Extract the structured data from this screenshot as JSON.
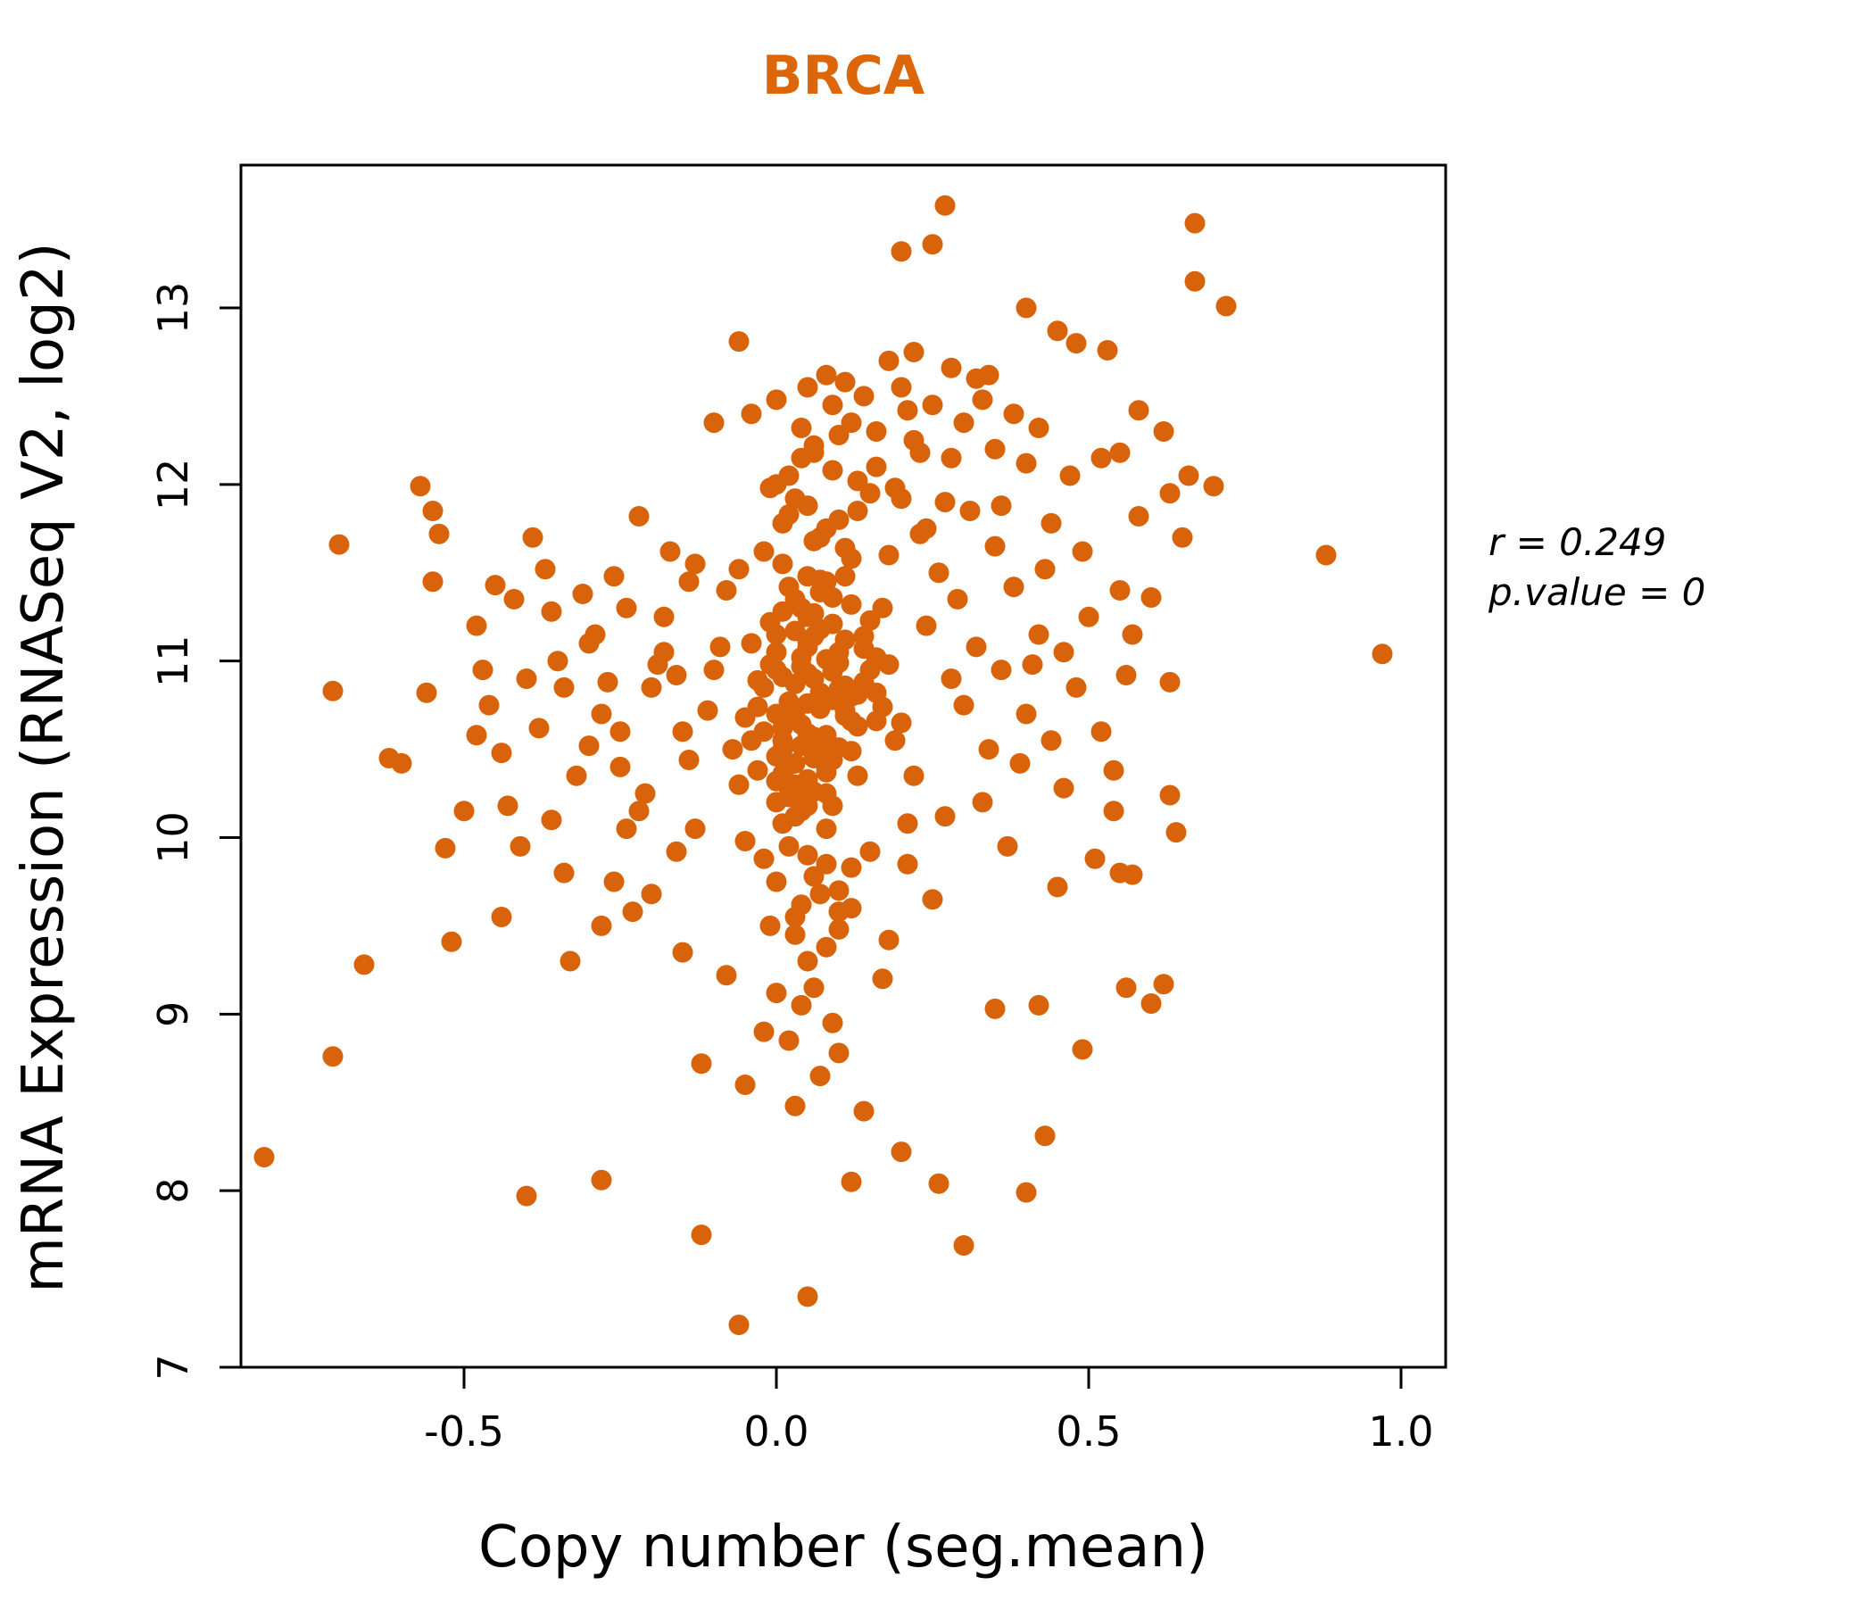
{
  "title": "BRCA",
  "chart_data": {
    "type": "scatter",
    "title": "BRCA",
    "xlabel": "Copy number (seg.mean)",
    "ylabel": "mRNA Expression (RNASeq V2, log2)",
    "xlim": [
      -0.86,
      1.07
    ],
    "ylim": [
      7,
      13.8
    ],
    "x_ticks": [
      -0.5,
      0.0,
      0.5,
      1.0
    ],
    "x_tick_labels": [
      "-0.5",
      "0.0",
      "0.5",
      "1.0"
    ],
    "y_ticks": [
      7,
      8,
      9,
      10,
      11,
      12,
      13
    ],
    "y_tick_labels": [
      "7",
      "8",
      "9",
      "10",
      "11",
      "12",
      "13"
    ],
    "grid": false,
    "legend": "none",
    "point_color": "#D9630B",
    "title_color": "#DD6608",
    "annotation": {
      "line1": "r = 0.249",
      "line2": "p.value = 0"
    },
    "points": [
      [
        -0.02,
        10.85
      ],
      [
        0.01,
        10.62
      ],
      [
        0.04,
        11.02
      ],
      [
        0.07,
        10.48
      ],
      [
        0.0,
        10.95
      ],
      [
        0.03,
        10.71
      ],
      [
        0.05,
        10.33
      ],
      [
        -0.04,
        10.55
      ],
      [
        0.09,
        10.78
      ],
      [
        0.11,
        11.12
      ],
      [
        0.02,
        10.41
      ],
      [
        -0.01,
        11.22
      ],
      [
        0.06,
        10.9
      ],
      [
        0.08,
        10.58
      ],
      [
        0.0,
        10.2
      ],
      [
        0.03,
        11.35
      ],
      [
        0.12,
        10.66
      ],
      [
        0.05,
        11.08
      ],
      [
        -0.03,
        10.74
      ],
      [
        0.1,
        10.99
      ],
      [
        0.01,
        10.36
      ],
      [
        0.07,
        11.18
      ],
      [
        0.04,
        10.52
      ],
      [
        0.13,
        10.81
      ],
      [
        0.02,
        11.42
      ],
      [
        -0.05,
        10.68
      ],
      [
        0.08,
        10.25
      ],
      [
        0.05,
        10.93
      ],
      [
        0.0,
        11.15
      ],
      [
        0.09,
        10.44
      ],
      [
        0.11,
        10.72
      ],
      [
        0.03,
        10.3
      ],
      [
        0.06,
        11.27
      ],
      [
        -0.02,
        10.6
      ],
      [
        0.14,
        10.88
      ],
      [
        0.01,
        10.5
      ],
      [
        0.04,
        10.15
      ],
      [
        0.07,
        10.82
      ],
      [
        0.1,
        11.05
      ],
      [
        0.0,
        10.7
      ],
      [
        0.05,
        11.48
      ],
      [
        0.02,
        10.23
      ],
      [
        0.15,
        10.95
      ],
      [
        -0.04,
        11.1
      ],
      [
        0.08,
        10.4
      ],
      [
        0.03,
        10.87
      ],
      [
        0.12,
        11.32
      ],
      [
        0.06,
        10.57
      ],
      [
        0.01,
        10.08
      ],
      [
        0.09,
        11.21
      ],
      [
        0.05,
        10.76
      ],
      [
        0.13,
        10.35
      ],
      [
        -0.01,
        10.98
      ],
      [
        0.07,
        11.39
      ],
      [
        0.04,
        10.64
      ],
      [
        0.16,
        11.02
      ],
      [
        0.02,
        10.28
      ],
      [
        0.1,
        10.84
      ],
      [
        0.06,
        11.14
      ],
      [
        0.0,
        10.46
      ],
      [
        0.08,
        11.45
      ],
      [
        0.03,
        10.12
      ],
      [
        0.11,
        10.69
      ],
      [
        0.05,
        11.25
      ],
      [
        -0.03,
        10.38
      ],
      [
        0.14,
        11.07
      ],
      [
        0.07,
        10.54
      ],
      [
        0.01,
        10.91
      ],
      [
        0.09,
        10.18
      ],
      [
        0.17,
        10.74
      ],
      [
        0.04,
        11.3
      ],
      [
        0.12,
        10.49
      ],
      [
        0.02,
        9.95
      ],
      [
        0.06,
        9.78
      ],
      [
        -0.02,
        9.88
      ],
      [
        0.1,
        9.7
      ],
      [
        0.04,
        9.62
      ],
      [
        0.08,
        10.05
      ],
      [
        0.0,
        9.75
      ],
      [
        0.05,
        9.9
      ],
      [
        0.12,
        9.83
      ],
      [
        -0.05,
        9.98
      ],
      [
        0.03,
        9.55
      ],
      [
        0.07,
        9.68
      ],
      [
        0.01,
        11.55
      ],
      [
        0.06,
        11.68
      ],
      [
        0.1,
        11.8
      ],
      [
        0.03,
        11.92
      ],
      [
        -0.02,
        11.62
      ],
      [
        0.08,
        11.75
      ],
      [
        0.05,
        11.88
      ],
      [
        0.12,
        11.58
      ],
      [
        0.0,
        12.0
      ],
      [
        0.07,
        11.7
      ],
      [
        0.02,
        11.83
      ],
      [
        0.15,
        11.95
      ],
      [
        -0.06,
        11.52
      ],
      [
        0.09,
        12.08
      ],
      [
        0.04,
        12.15
      ],
      [
        0.11,
        11.64
      ],
      [
        0.06,
        12.22
      ],
      [
        0.01,
        11.78
      ],
      [
        0.13,
        12.02
      ],
      [
        0.03,
        9.45
      ],
      [
        0.08,
        9.38
      ],
      [
        -0.01,
        9.5
      ],
      [
        0.05,
        9.3
      ],
      [
        0.1,
        9.58
      ],
      [
        -0.15,
        10.6
      ],
      [
        -0.2,
        10.85
      ],
      [
        -0.25,
        10.4
      ],
      [
        -0.18,
        11.05
      ],
      [
        -0.22,
        10.15
      ],
      [
        -0.28,
        10.7
      ],
      [
        -0.16,
        9.92
      ],
      [
        -0.24,
        11.3
      ],
      [
        -0.19,
        10.98
      ],
      [
        -0.3,
        10.52
      ],
      [
        -0.14,
        11.45
      ],
      [
        -0.26,
        9.75
      ],
      [
        -0.21,
        10.25
      ],
      [
        -0.17,
        11.62
      ],
      [
        -0.29,
        11.15
      ],
      [
        -0.13,
        10.05
      ],
      [
        -0.23,
        9.58
      ],
      [
        -0.27,
        10.88
      ],
      [
        0.2,
        10.65
      ],
      [
        0.24,
        11.2
      ],
      [
        0.28,
        10.9
      ],
      [
        0.22,
        10.35
      ],
      [
        0.26,
        11.5
      ],
      [
        0.3,
        10.75
      ],
      [
        0.21,
        9.85
      ],
      [
        0.27,
        10.12
      ],
      [
        0.23,
        11.72
      ],
      [
        0.32,
        11.08
      ],
      [
        0.25,
        9.65
      ],
      [
        0.29,
        11.35
      ],
      [
        0.34,
        10.5
      ],
      [
        0.31,
        11.85
      ],
      [
        0.36,
        10.95
      ],
      [
        0.33,
        10.2
      ],
      [
        0.38,
        11.42
      ],
      [
        0.35,
        11.65
      ],
      [
        0.4,
        10.7
      ],
      [
        0.37,
        9.95
      ],
      [
        0.42,
        11.15
      ],
      [
        0.39,
        10.42
      ],
      [
        0.44,
        11.78
      ],
      [
        0.41,
        10.98
      ],
      [
        -0.32,
        10.35
      ],
      [
        -0.35,
        11.0
      ],
      [
        -0.38,
        10.62
      ],
      [
        -0.34,
        9.8
      ],
      [
        -0.31,
        11.38
      ],
      [
        -0.36,
        10.1
      ],
      [
        0.18,
        9.42
      ],
      [
        0.16,
        12.3
      ],
      [
        0.19,
        11.98
      ],
      [
        0.23,
        12.18
      ],
      [
        0.17,
        9.2
      ],
      [
        0.21,
        12.42
      ],
      [
        0.46,
        10.28
      ],
      [
        0.43,
        11.52
      ],
      [
        0.48,
        10.85
      ],
      [
        0.45,
        9.72
      ],
      [
        0.5,
        11.25
      ],
      [
        0.47,
        12.05
      ],
      [
        -0.4,
        10.9
      ],
      [
        -0.42,
        11.35
      ],
      [
        -0.44,
        10.48
      ],
      [
        -0.41,
        9.95
      ],
      [
        -0.39,
        11.7
      ],
      [
        -0.43,
        10.18
      ],
      [
        0.52,
        10.6
      ],
      [
        0.55,
        11.4
      ],
      [
        0.54,
        10.15
      ],
      [
        0.58,
        11.82
      ],
      [
        0.51,
        9.88
      ],
      [
        0.56,
        10.92
      ],
      [
        0.0,
        9.12
      ],
      [
        0.04,
        9.05
      ],
      [
        -0.08,
        9.22
      ],
      [
        0.09,
        8.95
      ],
      [
        0.02,
        8.85
      ],
      [
        0.06,
        9.15
      ],
      [
        -0.1,
        12.35
      ],
      [
        0.0,
        12.48
      ],
      [
        0.05,
        12.55
      ],
      [
        0.1,
        12.28
      ],
      [
        -0.04,
        12.4
      ],
      [
        0.08,
        12.62
      ],
      [
        0.14,
        12.5
      ],
      [
        0.18,
        12.7
      ],
      [
        0.12,
        12.35
      ],
      [
        0.2,
        12.55
      ],
      [
        0.16,
        12.1
      ],
      [
        0.22,
        12.25
      ],
      [
        0.25,
        12.45
      ],
      [
        0.28,
        12.15
      ],
      [
        0.3,
        12.35
      ],
      [
        0.27,
        11.9
      ],
      [
        0.33,
        12.48
      ],
      [
        0.24,
        11.75
      ],
      [
        0.35,
        12.2
      ],
      [
        0.38,
        12.4
      ],
      [
        0.32,
        12.6
      ],
      [
        0.4,
        12.12
      ],
      [
        0.36,
        11.88
      ],
      [
        0.42,
        12.32
      ],
      [
        -0.12,
        8.72
      ],
      [
        -0.05,
        8.6
      ],
      [
        0.03,
        8.48
      ],
      [
        0.1,
        8.78
      ],
      [
        -0.02,
        8.9
      ],
      [
        0.07,
        8.65
      ],
      [
        0.02,
        10.77
      ],
      [
        0.05,
        10.59
      ],
      [
        0.08,
        11.01
      ],
      [
        0.0,
        10.32
      ],
      [
        0.11,
        10.86
      ],
      [
        0.03,
        11.17
      ],
      [
        0.06,
        10.45
      ],
      [
        0.09,
        10.94
      ],
      [
        0.01,
        11.28
      ],
      [
        0.13,
        10.63
      ],
      [
        0.04,
        10.21
      ],
      [
        0.07,
        11.46
      ],
      [
        -0.03,
        10.89
      ],
      [
        0.1,
        10.51
      ],
      [
        0.05,
        11.11
      ],
      [
        0.02,
        10.68
      ],
      [
        0.15,
        11.23
      ],
      [
        0.08,
        10.37
      ],
      [
        0.12,
        10.8
      ],
      [
        0.0,
        11.05
      ],
      [
        0.06,
        10.26
      ],
      [
        0.04,
        10.97
      ],
      [
        0.09,
        11.36
      ],
      [
        0.01,
        10.55
      ],
      [
        0.14,
        11.14
      ],
      [
        0.03,
        10.42
      ],
      [
        0.07,
        10.73
      ],
      [
        0.11,
        11.48
      ],
      [
        0.05,
        10.18
      ],
      [
        0.16,
        10.66
      ],
      [
        -0.07,
        10.5
      ],
      [
        -0.09,
        11.08
      ],
      [
        -0.11,
        10.72
      ],
      [
        -0.06,
        10.3
      ],
      [
        -0.08,
        11.4
      ],
      [
        -0.1,
        10.95
      ],
      [
        -0.46,
        10.75
      ],
      [
        -0.48,
        11.2
      ],
      [
        -0.5,
        10.15
      ],
      [
        -0.52,
        9.41
      ],
      [
        -0.47,
        10.95
      ],
      [
        -0.45,
        11.43
      ],
      [
        -0.55,
        11.85
      ],
      [
        -0.57,
        11.99
      ],
      [
        -0.54,
        11.72
      ],
      [
        -0.55,
        11.45
      ],
      [
        -0.53,
        9.94
      ],
      [
        -0.56,
        10.82
      ],
      [
        -0.6,
        10.42
      ],
      [
        -0.62,
        10.45
      ],
      [
        -0.66,
        9.28
      ],
      [
        -0.7,
        11.66
      ],
      [
        -0.71,
        10.83
      ],
      [
        -0.71,
        8.76
      ],
      [
        -0.82,
        8.19
      ],
      [
        -0.4,
        7.97
      ],
      [
        -0.28,
        8.06
      ],
      [
        -0.12,
        7.75
      ],
      [
        -0.06,
        7.24
      ],
      [
        0.05,
        7.4
      ],
      [
        0.3,
        7.69
      ],
      [
        0.26,
        8.04
      ],
      [
        0.12,
        8.05
      ],
      [
        0.14,
        8.45
      ],
      [
        0.2,
        8.22
      ],
      [
        0.43,
        8.31
      ],
      [
        0.4,
        7.99
      ],
      [
        0.35,
        9.03
      ],
      [
        0.42,
        9.05
      ],
      [
        0.49,
        8.8
      ],
      [
        0.56,
        9.15
      ],
      [
        0.62,
        9.17
      ],
      [
        0.6,
        9.06
      ],
      [
        0.55,
        9.8
      ],
      [
        0.57,
        9.79
      ],
      [
        0.63,
        10.24
      ],
      [
        0.64,
        10.03
      ],
      [
        0.63,
        10.88
      ],
      [
        0.6,
        11.36
      ],
      [
        0.63,
        11.95
      ],
      [
        0.66,
        12.05
      ],
      [
        0.7,
        11.99
      ],
      [
        0.88,
        11.6
      ],
      [
        0.97,
        11.04
      ],
      [
        0.27,
        13.58
      ],
      [
        0.2,
        13.32
      ],
      [
        0.25,
        13.36
      ],
      [
        0.67,
        13.48
      ],
      [
        0.67,
        13.15
      ],
      [
        0.72,
        13.01
      ],
      [
        0.4,
        13.0
      ],
      [
        -0.06,
        12.81
      ],
      [
        0.22,
        12.75
      ],
      [
        0.28,
        12.66
      ],
      [
        0.34,
        12.62
      ],
      [
        0.45,
        12.87
      ],
      [
        0.48,
        12.8
      ],
      [
        0.53,
        12.76
      ],
      [
        0.58,
        12.42
      ],
      [
        0.55,
        12.18
      ],
      [
        0.62,
        12.3
      ],
      [
        0.65,
        11.7
      ],
      [
        -0.14,
        10.44
      ],
      [
        -0.16,
        10.92
      ],
      [
        -0.18,
        11.25
      ],
      [
        -0.2,
        9.68
      ],
      [
        -0.13,
        11.55
      ],
      [
        -0.15,
        9.35
      ],
      [
        0.19,
        10.55
      ],
      [
        0.17,
        11.3
      ],
      [
        0.21,
        10.08
      ],
      [
        0.18,
        11.6
      ],
      [
        0.16,
        10.82
      ],
      [
        0.2,
        11.92
      ],
      [
        0.02,
        12.05
      ],
      [
        0.06,
        12.18
      ],
      [
        -0.01,
        11.98
      ],
      [
        0.09,
        12.45
      ],
      [
        0.04,
        12.32
      ],
      [
        0.11,
        12.58
      ],
      [
        -0.24,
        10.05
      ],
      [
        -0.26,
        11.48
      ],
      [
        -0.22,
        11.82
      ],
      [
        -0.28,
        9.5
      ],
      [
        -0.25,
        10.6
      ],
      [
        -0.3,
        11.1
      ],
      [
        0.44,
        10.55
      ],
      [
        0.46,
        11.05
      ],
      [
        0.49,
        11.62
      ],
      [
        0.52,
        12.15
      ],
      [
        0.54,
        10.38
      ],
      [
        0.57,
        11.15
      ],
      [
        -0.34,
        10.85
      ],
      [
        -0.37,
        11.52
      ],
      [
        -0.33,
        9.3
      ],
      [
        -0.44,
        9.55
      ],
      [
        -0.48,
        10.58
      ],
      [
        -0.36,
        11.28
      ],
      [
        0.08,
        9.85
      ],
      [
        0.12,
        9.6
      ],
      [
        0.15,
        9.92
      ],
      [
        0.1,
        9.48
      ],
      [
        0.13,
        11.85
      ],
      [
        0.18,
        10.98
      ]
    ]
  }
}
